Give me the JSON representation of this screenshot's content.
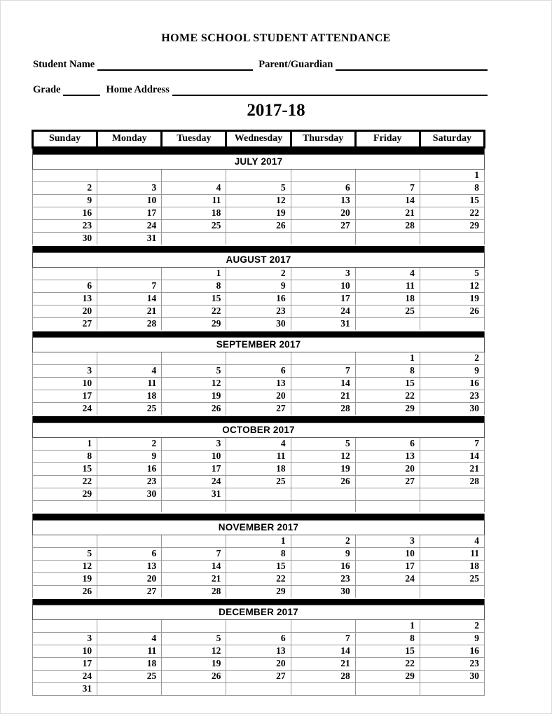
{
  "header": {
    "title": "HOME SCHOOL STUDENT ATTENDANCE",
    "student_name_label": "Student Name",
    "parent_guardian_label": "Parent/Guardian",
    "grade_label": "Grade",
    "home_address_label": "Home Address",
    "year_label": "2017-18"
  },
  "colors": {
    "text": "#000000",
    "grid_line": "#999999",
    "separator_bar": "#000000",
    "background": "#ffffff"
  },
  "calendar": {
    "day_headers": [
      "Sunday",
      "Monday",
      "Tuesday",
      "Wednesday",
      "Thursday",
      "Friday",
      "Saturday"
    ],
    "months": [
      {
        "name": "JULY 2017",
        "weeks": [
          [
            "",
            "",
            "",
            "",
            "",
            "",
            "1"
          ],
          [
            "2",
            "3",
            "4",
            "5",
            "6",
            "7",
            "8"
          ],
          [
            "9",
            "10",
            "11",
            "12",
            "13",
            "14",
            "15"
          ],
          [
            "16",
            "17",
            "18",
            "19",
            "20",
            "21",
            "22"
          ],
          [
            "23",
            "24",
            "25",
            "26",
            "27",
            "28",
            "29"
          ],
          [
            "30",
            "31",
            "",
            "",
            "",
            "",
            ""
          ]
        ]
      },
      {
        "name": "AUGUST 2017",
        "weeks": [
          [
            "",
            "",
            "1",
            "2",
            "3",
            "4",
            "5"
          ],
          [
            "6",
            "7",
            "8",
            "9",
            "10",
            "11",
            "12"
          ],
          [
            "13",
            "14",
            "15",
            "16",
            "17",
            "18",
            "19"
          ],
          [
            "20",
            "21",
            "22",
            "23",
            "24",
            "25",
            "26"
          ],
          [
            "27",
            "28",
            "29",
            "30",
            "31",
            "",
            ""
          ]
        ]
      },
      {
        "name": "SEPTEMBER 2017",
        "weeks": [
          [
            "",
            "",
            "",
            "",
            "",
            "1",
            "2"
          ],
          [
            "3",
            "4",
            "5",
            "6",
            "7",
            "8",
            "9"
          ],
          [
            "10",
            "11",
            "12",
            "13",
            "14",
            "15",
            "16"
          ],
          [
            "17",
            "18",
            "19",
            "20",
            "21",
            "22",
            "23"
          ],
          [
            "24",
            "25",
            "26",
            "27",
            "28",
            "29",
            "30"
          ]
        ]
      },
      {
        "name": "OCTOBER 2017",
        "weeks": [
          [
            "1",
            "2",
            "3",
            "4",
            "5",
            "6",
            "7"
          ],
          [
            "8",
            "9",
            "10",
            "11",
            "12",
            "13",
            "14"
          ],
          [
            "15",
            "16",
            "17",
            "18",
            "19",
            "20",
            "21"
          ],
          [
            "22",
            "23",
            "24",
            "25",
            "26",
            "27",
            "28"
          ],
          [
            "29",
            "30",
            "31",
            "",
            "",
            "",
            ""
          ],
          [
            "",
            "",
            "",
            "",
            "",
            "",
            ""
          ]
        ]
      },
      {
        "name": "NOVEMBER 2017",
        "weeks": [
          [
            "",
            "",
            "",
            "1",
            "2",
            "3",
            "4"
          ],
          [
            "5",
            "6",
            "7",
            "8",
            "9",
            "10",
            "11"
          ],
          [
            "12",
            "13",
            "14",
            "15",
            "16",
            "17",
            "18"
          ],
          [
            "19",
            "20",
            "21",
            "22",
            "23",
            "24",
            "25"
          ],
          [
            "26",
            "27",
            "28",
            "29",
            "30",
            "",
            ""
          ]
        ]
      },
      {
        "name": "DECEMBER 2017",
        "weeks": [
          [
            "",
            "",
            "",
            "",
            "",
            "1",
            "2"
          ],
          [
            "3",
            "4",
            "5",
            "6",
            "7",
            "8",
            "9"
          ],
          [
            "10",
            "11",
            "12",
            "13",
            "14",
            "15",
            "16"
          ],
          [
            "17",
            "18",
            "19",
            "20",
            "21",
            "22",
            "23"
          ],
          [
            "24",
            "25",
            "26",
            "27",
            "28",
            "29",
            "30"
          ],
          [
            "31",
            "",
            "",
            "",
            "",
            "",
            ""
          ]
        ]
      }
    ]
  }
}
